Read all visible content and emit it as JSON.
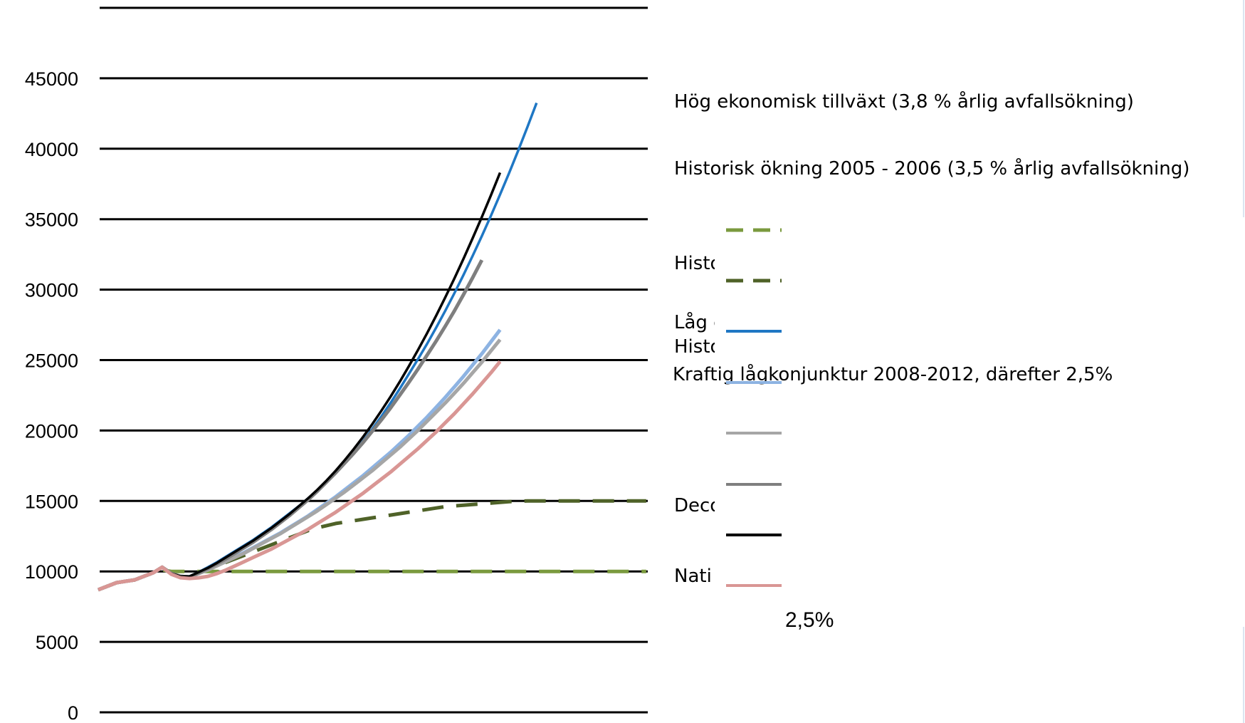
{
  "chart_data": {
    "type": "line",
    "title": "",
    "xlabel": "",
    "ylabel": "",
    "ylim": [
      0,
      50000
    ],
    "yticks": [
      0,
      5000,
      10000,
      15000,
      20000,
      25000,
      30000,
      35000,
      40000,
      45000
    ],
    "grid": true,
    "legend": "right",
    "x": [
      0,
      1,
      2,
      3,
      4,
      5,
      6,
      7,
      8,
      9,
      10,
      11,
      12,
      13,
      14,
      15,
      16,
      17,
      18,
      19,
      20,
      21,
      22,
      23,
      24,
      25,
      26,
      27,
      28,
      29,
      30,
      31,
      32,
      33,
      34,
      35,
      36,
      37,
      38,
      39,
      40,
      41,
      42,
      43,
      44,
      45,
      46,
      47,
      48,
      49,
      50,
      51,
      52,
      53,
      54,
      55,
      56,
      57,
      58,
      59,
      60
    ],
    "series": [
      {
        "name": "",
        "color": "#7a9a3e",
        "dash": true,
        "values": [
          8700,
          8950,
          9200,
          9300,
          9400,
          9650,
          9900,
          10100,
          10000,
          10000,
          10000,
          10000,
          10000,
          10000,
          10000,
          10000,
          10000,
          10000,
          10000,
          10000,
          10000,
          10000,
          10000,
          10000,
          10000,
          10000,
          10000,
          10000,
          10000,
          10000,
          10000,
          10000,
          10000,
          10000,
          10000,
          10000,
          10000,
          10000,
          10000,
          10000,
          10000,
          10000,
          10000,
          10000,
          10000,
          10000,
          10000,
          10000,
          10000,
          10000,
          10000,
          10000,
          10000,
          10000,
          10000,
          10000,
          10000,
          10000,
          10000,
          10000,
          10000
        ]
      },
      {
        "name": "",
        "color": "#4f6228",
        "dash": true,
        "values": [
          8700,
          8950,
          9200,
          9300,
          9400,
          9650,
          9900,
          10300,
          9850,
          9650,
          9600,
          9900,
          10150,
          10400,
          10650,
          10900,
          11150,
          11400,
          11650,
          11900,
          12150,
          12400,
          12650,
          12900,
          13100,
          13250,
          13400,
          13500,
          13600,
          13700,
          13800,
          13900,
          14000,
          14100,
          14200,
          14300,
          14400,
          14500,
          14600,
          14650,
          14700,
          14750,
          14800,
          14850,
          14900,
          14950,
          14980,
          15000,
          15000,
          15000,
          15000,
          15000,
          15000,
          15000,
          15000,
          15000,
          15000,
          15000,
          15000,
          15000,
          15000
        ]
      },
      {
        "name": "",
        "color": "#1f77c4",
        "dash": false,
        "values": [
          8700,
          8950,
          9200,
          9300,
          9400,
          9650,
          9900,
          10300,
          9850,
          9650,
          9650,
          9950,
          10300,
          10650,
          11050,
          11450,
          11850,
          12250,
          12700,
          13150,
          13650,
          14150,
          14650,
          15200,
          15750,
          16350,
          17000,
          17700,
          18450,
          19250,
          20100,
          21000,
          21950,
          22950,
          24000,
          25050,
          26150,
          27300,
          28500,
          29750,
          31050,
          32400,
          33800,
          35250,
          36750,
          38300,
          39900,
          41550,
          43250,
          0,
          0,
          0,
          0,
          0,
          0,
          0,
          0,
          0,
          0,
          0,
          0
        ]
      },
      {
        "name": "",
        "color": "#8db3e2",
        "dash": false,
        "values": [
          8700,
          8950,
          9200,
          9300,
          9400,
          9650,
          9900,
          10300,
          9850,
          9650,
          9600,
          9850,
          10150,
          10450,
          10750,
          11050,
          11350,
          11700,
          12050,
          12400,
          12750,
          13150,
          13550,
          13950,
          14400,
          14850,
          15300,
          15800,
          16300,
          16800,
          17350,
          17900,
          18450,
          19050,
          19650,
          20300,
          20950,
          21650,
          22350,
          23100,
          23850,
          24650,
          25450,
          26300,
          27150,
          0,
          0,
          0,
          0,
          0,
          0,
          0,
          0,
          0,
          0,
          0,
          0,
          0,
          0,
          0,
          0
        ]
      },
      {
        "name": "",
        "color": "#a6a6a6",
        "dash": false,
        "values": [
          8700,
          8950,
          9200,
          9300,
          9400,
          9650,
          9900,
          10300,
          9850,
          9650,
          9600,
          9850,
          10100,
          10400,
          10700,
          11000,
          11300,
          11650,
          12000,
          12350,
          12700,
          13100,
          13500,
          13900,
          14300,
          14750,
          15200,
          15650,
          16150,
          16650,
          17150,
          17700,
          18250,
          18800,
          19400,
          20000,
          20650,
          21300,
          21950,
          22650,
          23350,
          24100,
          24850,
          25650,
          26450,
          0,
          0,
          0,
          0,
          0,
          0,
          0,
          0,
          0,
          0,
          0,
          0,
          0,
          0,
          0,
          0
        ]
      },
      {
        "name": "",
        "color": "#7f7f7f",
        "dash": false,
        "values": [
          8700,
          8950,
          9200,
          9300,
          9400,
          9650,
          9900,
          10300,
          9850,
          9650,
          9600,
          9900,
          10200,
          10550,
          10900,
          11300,
          11700,
          12100,
          12550,
          13000,
          13500,
          14000,
          14550,
          15100,
          15700,
          16350,
          17000,
          17700,
          18400,
          19150,
          19950,
          20750,
          21600,
          22500,
          23400,
          24350,
          25350,
          26350,
          27400,
          28500,
          29650,
          30850,
          32100,
          0,
          0,
          0,
          0,
          0,
          0,
          0,
          0,
          0,
          0,
          0,
          0,
          0,
          0,
          0,
          0,
          0,
          0
        ]
      },
      {
        "name": "",
        "color": "#000000",
        "dash": false,
        "values": [
          8700,
          8950,
          9200,
          9300,
          9400,
          9650,
          9900,
          10300,
          9850,
          9650,
          9650,
          9950,
          10250,
          10600,
          11000,
          11400,
          11800,
          12200,
          12650,
          13100,
          13600,
          14100,
          14650,
          15200,
          15800,
          16450,
          17150,
          17900,
          18700,
          19550,
          20450,
          21400,
          22400,
          23450,
          24550,
          25700,
          26900,
          28150,
          29450,
          30800,
          32200,
          33650,
          35150,
          36700,
          38300,
          0,
          0,
          0,
          0,
          0,
          0,
          0,
          0,
          0,
          0,
          0,
          0,
          0,
          0,
          0,
          0
        ]
      },
      {
        "name": "",
        "color": "#d99694",
        "dash": false,
        "values": [
          8700,
          8950,
          9200,
          9300,
          9400,
          9650,
          9900,
          10300,
          9800,
          9550,
          9500,
          9550,
          9650,
          9850,
          10100,
          10400,
          10700,
          11000,
          11300,
          11600,
          11950,
          12300,
          12650,
          13000,
          13400,
          13800,
          14200,
          14650,
          15100,
          15550,
          16050,
          16550,
          17050,
          17600,
          18150,
          18700,
          19300,
          19900,
          20550,
          21200,
          21900,
          22600,
          23350,
          24100,
          24900,
          0,
          0,
          0,
          0,
          0,
          0,
          0,
          0,
          0,
          0,
          0,
          0,
          0,
          0,
          0,
          0
        ]
      }
    ],
    "annotations": [
      "Hög ekonomisk tillväxt  (3,8 % årlig avfallsökning)",
      "Historisk ökning 2005 - 2006  (3,5 % årlig avfallsökning)",
      "Histo",
      "Låg e",
      "Histo",
      "Kraftig lågkonjunktur 2008-2012, därefter 2,5%",
      "Deco",
      "Nati",
      "2,5%"
    ]
  }
}
